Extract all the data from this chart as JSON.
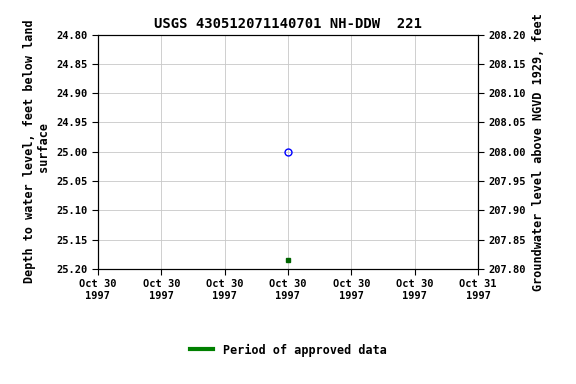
{
  "title": "USGS 430512071140701 NH-DDW  221",
  "ylabel_left": "Depth to water level, feet below land\n surface",
  "ylabel_right": "Groundwater level above NGVD 1929, feet",
  "ylim_left": [
    25.2,
    24.8
  ],
  "ylim_right": [
    207.8,
    208.2
  ],
  "yticks_left": [
    24.8,
    24.85,
    24.9,
    24.95,
    25.0,
    25.05,
    25.1,
    25.15,
    25.2
  ],
  "yticks_right": [
    208.2,
    208.15,
    208.1,
    208.05,
    208.0,
    207.95,
    207.9,
    207.85,
    207.8
  ],
  "x_start_num": 0,
  "x_end_num": 6,
  "xtick_positions": [
    0,
    1,
    2,
    3,
    4,
    5,
    6
  ],
  "xtick_labels": [
    "Oct 30\n1997",
    "Oct 30\n1997",
    "Oct 30\n1997",
    "Oct 30\n1997",
    "Oct 30\n1997",
    "Oct 30\n1997",
    "Oct 31\n1997"
  ],
  "data_open_x": 3,
  "data_open_y": 25.0,
  "data_open_color": "#0000ff",
  "data_open_marker": "o",
  "data_open_size": 5,
  "data_filled_x": 3,
  "data_filled_y": 25.185,
  "data_filled_color": "#006400",
  "data_filled_marker": "s",
  "data_filled_size": 3.5,
  "legend_label": "Period of approved data",
  "legend_color": "#008000",
  "background_color": "#ffffff",
  "grid_color": "#c8c8c8",
  "title_fontsize": 10,
  "tick_fontsize": 7.5,
  "label_fontsize": 8.5
}
